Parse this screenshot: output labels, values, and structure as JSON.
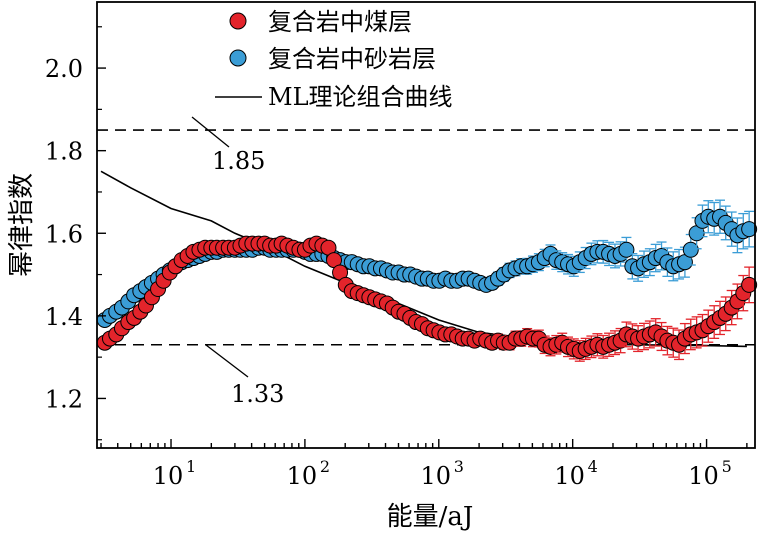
{
  "chart_data": {
    "type": "scatter",
    "title": "",
    "xlabel": "能量/aJ",
    "ylabel": "幂律指数",
    "x_scale": "log",
    "xlim": [
      2.8,
      230000
    ],
    "ylim": [
      1.08,
      2.16
    ],
    "x_ticks": [
      {
        "value": 10,
        "base": "10",
        "exp": "1"
      },
      {
        "value": 100,
        "base": "10",
        "exp": "2"
      },
      {
        "value": 1000,
        "base": "10",
        "exp": "3"
      },
      {
        "value": 10000,
        "base": "10",
        "exp": "4"
      },
      {
        "value": 100000,
        "base": "10",
        "exp": "5"
      }
    ],
    "y_ticks": [
      {
        "value": 1.2,
        "label": "1.2"
      },
      {
        "value": 1.4,
        "label": "1.4"
      },
      {
        "value": 1.6,
        "label": "1.6"
      },
      {
        "value": 1.8,
        "label": "1.8"
      },
      {
        "value": 2.0,
        "label": "2.0"
      }
    ],
    "legend_position": "top-center",
    "series": [
      {
        "name": "复合岩中煤层",
        "kind": "markers",
        "color": "#e3242b",
        "points": [
          [
            3.2,
            1.335
          ],
          [
            3.5,
            1.345
          ],
          [
            3.9,
            1.355
          ],
          [
            4.3,
            1.37
          ],
          [
            4.8,
            1.385
          ],
          [
            5.3,
            1.395
          ],
          [
            5.9,
            1.41
          ],
          [
            6.5,
            1.425
          ],
          [
            7.2,
            1.445
          ],
          [
            8.0,
            1.465
          ],
          [
            8.8,
            1.485
          ],
          [
            9.8,
            1.505
          ],
          [
            10.8,
            1.52
          ],
          [
            12,
            1.535
          ],
          [
            13.3,
            1.545
          ],
          [
            14.7,
            1.555
          ],
          [
            16.3,
            1.56
          ],
          [
            18,
            1.565
          ],
          [
            20,
            1.565
          ],
          [
            22,
            1.565
          ],
          [
            24.5,
            1.565
          ],
          [
            27,
            1.565
          ],
          [
            30,
            1.565
          ],
          [
            33,
            1.57
          ],
          [
            36.5,
            1.575
          ],
          [
            40.5,
            1.575
          ],
          [
            45,
            1.575
          ],
          [
            50,
            1.575
          ],
          [
            55,
            1.57
          ],
          [
            61,
            1.57
          ],
          [
            67,
            1.575
          ],
          [
            74,
            1.57
          ],
          [
            82,
            1.565
          ],
          [
            91,
            1.56
          ],
          [
            100,
            1.56
          ],
          [
            110,
            1.57
          ],
          [
            122,
            1.575
          ],
          [
            135,
            1.57
          ],
          [
            150,
            1.565
          ],
          [
            165,
            1.535
          ],
          [
            183,
            1.505
          ],
          [
            202,
            1.475
          ],
          [
            224,
            1.46
          ],
          [
            248,
            1.455
          ],
          [
            274,
            1.45
          ],
          [
            303,
            1.445
          ],
          [
            335,
            1.44
          ],
          [
            370,
            1.435
          ],
          [
            410,
            1.43
          ],
          [
            453,
            1.42
          ],
          [
            501,
            1.41
          ],
          [
            554,
            1.405
          ],
          [
            612,
            1.395
          ],
          [
            677,
            1.385
          ],
          [
            749,
            1.38
          ],
          [
            828,
            1.37
          ],
          [
            915,
            1.365
          ],
          [
            1010,
            1.36
          ],
          [
            1120,
            1.355
          ],
          [
            1240,
            1.355
          ],
          [
            1370,
            1.35
          ],
          [
            1510,
            1.345
          ],
          [
            1670,
            1.345
          ],
          [
            1850,
            1.34
          ],
          [
            2040,
            1.345
          ],
          [
            2260,
            1.34
          ],
          [
            2500,
            1.335
          ],
          [
            2770,
            1.34
          ],
          [
            3060,
            1.335
          ],
          [
            3380,
            1.335
          ],
          [
            3740,
            1.345
          ],
          [
            4130,
            1.345
          ],
          [
            4570,
            1.35
          ],
          [
            5050,
            1.345
          ],
          [
            5590,
            1.345
          ],
          [
            6180,
            1.33
          ],
          [
            6830,
            1.325
          ],
          [
            7550,
            1.33
          ],
          [
            8350,
            1.335
          ],
          [
            9230,
            1.325
          ],
          [
            10200,
            1.32
          ],
          [
            11300,
            1.315
          ],
          [
            12500,
            1.32
          ],
          [
            13800,
            1.325
          ],
          [
            15300,
            1.33
          ],
          [
            16900,
            1.325
          ],
          [
            18700,
            1.33
          ],
          [
            20700,
            1.335
          ],
          [
            22800,
            1.34
          ],
          [
            25200,
            1.355
          ],
          [
            27900,
            1.35
          ],
          [
            30800,
            1.345
          ],
          [
            34100,
            1.35
          ],
          [
            37700,
            1.355
          ],
          [
            41700,
            1.36
          ],
          [
            46100,
            1.35
          ],
          [
            51000,
            1.34
          ],
          [
            56400,
            1.335
          ],
          [
            62300,
            1.33
          ],
          [
            68900,
            1.345
          ],
          [
            76200,
            1.355
          ],
          [
            84300,
            1.36
          ],
          [
            93200,
            1.365
          ],
          [
            103000,
            1.375
          ],
          [
            114000,
            1.385
          ],
          [
            126000,
            1.395
          ],
          [
            139000,
            1.405
          ],
          [
            154000,
            1.42
          ],
          [
            170000,
            1.435
          ],
          [
            188000,
            1.455
          ],
          [
            208000,
            1.475
          ]
        ]
      },
      {
        "name": "复合岩中砂岩层",
        "kind": "markers",
        "color": "#3b9dd6",
        "points": [
          [
            3.2,
            1.39
          ],
          [
            3.5,
            1.4
          ],
          [
            3.9,
            1.41
          ],
          [
            4.3,
            1.42
          ],
          [
            4.8,
            1.435
          ],
          [
            5.3,
            1.45
          ],
          [
            5.9,
            1.46
          ],
          [
            6.5,
            1.47
          ],
          [
            7.2,
            1.48
          ],
          [
            8.0,
            1.49
          ],
          [
            8.8,
            1.5
          ],
          [
            9.8,
            1.51
          ],
          [
            10.8,
            1.52
          ],
          [
            12,
            1.53
          ],
          [
            13.3,
            1.535
          ],
          [
            14.7,
            1.54
          ],
          [
            16.3,
            1.545
          ],
          [
            18,
            1.55
          ],
          [
            20,
            1.555
          ],
          [
            22,
            1.555
          ],
          [
            24.5,
            1.56
          ],
          [
            27,
            1.56
          ],
          [
            30,
            1.56
          ],
          [
            33,
            1.56
          ],
          [
            36.5,
            1.56
          ],
          [
            40.5,
            1.56
          ],
          [
            45,
            1.565
          ],
          [
            50,
            1.565
          ],
          [
            55,
            1.56
          ],
          [
            61,
            1.56
          ],
          [
            67,
            1.56
          ],
          [
            74,
            1.56
          ],
          [
            82,
            1.56
          ],
          [
            91,
            1.56
          ],
          [
            100,
            1.555
          ],
          [
            110,
            1.55
          ],
          [
            122,
            1.55
          ],
          [
            135,
            1.55
          ],
          [
            150,
            1.545
          ],
          [
            165,
            1.54
          ],
          [
            183,
            1.535
          ],
          [
            202,
            1.53
          ],
          [
            224,
            1.53
          ],
          [
            248,
            1.525
          ],
          [
            274,
            1.52
          ],
          [
            303,
            1.52
          ],
          [
            335,
            1.515
          ],
          [
            370,
            1.515
          ],
          [
            410,
            1.51
          ],
          [
            453,
            1.505
          ],
          [
            501,
            1.505
          ],
          [
            554,
            1.5
          ],
          [
            612,
            1.5
          ],
          [
            677,
            1.495
          ],
          [
            749,
            1.49
          ],
          [
            828,
            1.49
          ],
          [
            915,
            1.485
          ],
          [
            1010,
            1.485
          ],
          [
            1120,
            1.49
          ],
          [
            1240,
            1.485
          ],
          [
            1370,
            1.485
          ],
          [
            1510,
            1.49
          ],
          [
            1670,
            1.49
          ],
          [
            1850,
            1.485
          ],
          [
            2040,
            1.48
          ],
          [
            2260,
            1.475
          ],
          [
            2500,
            1.48
          ],
          [
            2770,
            1.49
          ],
          [
            3060,
            1.5
          ],
          [
            3380,
            1.51
          ],
          [
            3740,
            1.515
          ],
          [
            4130,
            1.52
          ],
          [
            4570,
            1.52
          ],
          [
            5050,
            1.525
          ],
          [
            5590,
            1.53
          ],
          [
            6180,
            1.54
          ],
          [
            6830,
            1.55
          ],
          [
            7550,
            1.535
          ],
          [
            8350,
            1.53
          ],
          [
            9230,
            1.525
          ],
          [
            10200,
            1.52
          ],
          [
            11300,
            1.53
          ],
          [
            12500,
            1.54
          ],
          [
            13800,
            1.55
          ],
          [
            15300,
            1.555
          ],
          [
            16900,
            1.555
          ],
          [
            18700,
            1.55
          ],
          [
            20700,
            1.545
          ],
          [
            22800,
            1.55
          ],
          [
            25200,
            1.56
          ],
          [
            27900,
            1.52
          ],
          [
            30800,
            1.515
          ],
          [
            34100,
            1.525
          ],
          [
            37700,
            1.53
          ],
          [
            41700,
            1.54
          ],
          [
            46100,
            1.545
          ],
          [
            51000,
            1.53
          ],
          [
            56400,
            1.52
          ],
          [
            62300,
            1.525
          ],
          [
            68900,
            1.53
          ],
          [
            76200,
            1.56
          ],
          [
            84300,
            1.6
          ],
          [
            93200,
            1.63
          ],
          [
            103000,
            1.64
          ],
          [
            114000,
            1.635
          ],
          [
            126000,
            1.64
          ],
          [
            139000,
            1.625
          ],
          [
            154000,
            1.61
          ],
          [
            170000,
            1.595
          ],
          [
            188000,
            1.605
          ],
          [
            208000,
            1.61
          ]
        ]
      },
      {
        "name": "ML理论组合曲线",
        "kind": "line",
        "color": "#000000",
        "points": [
          [
            3,
            1.75
          ],
          [
            5,
            1.71
          ],
          [
            10,
            1.66
          ],
          [
            20,
            1.63
          ],
          [
            30,
            1.6
          ],
          [
            50,
            1.57
          ],
          [
            100,
            1.52
          ],
          [
            200,
            1.48
          ],
          [
            500,
            1.43
          ],
          [
            1000,
            1.39
          ],
          [
            2000,
            1.36
          ],
          [
            5000,
            1.345
          ],
          [
            10000,
            1.335
          ],
          [
            30000,
            1.33
          ],
          [
            100000,
            1.328
          ],
          [
            200000,
            1.326
          ]
        ]
      }
    ],
    "reference_lines": [
      {
        "y": 1.85,
        "label": "1.85"
      },
      {
        "y": 1.33,
        "label": "1.33"
      }
    ]
  }
}
